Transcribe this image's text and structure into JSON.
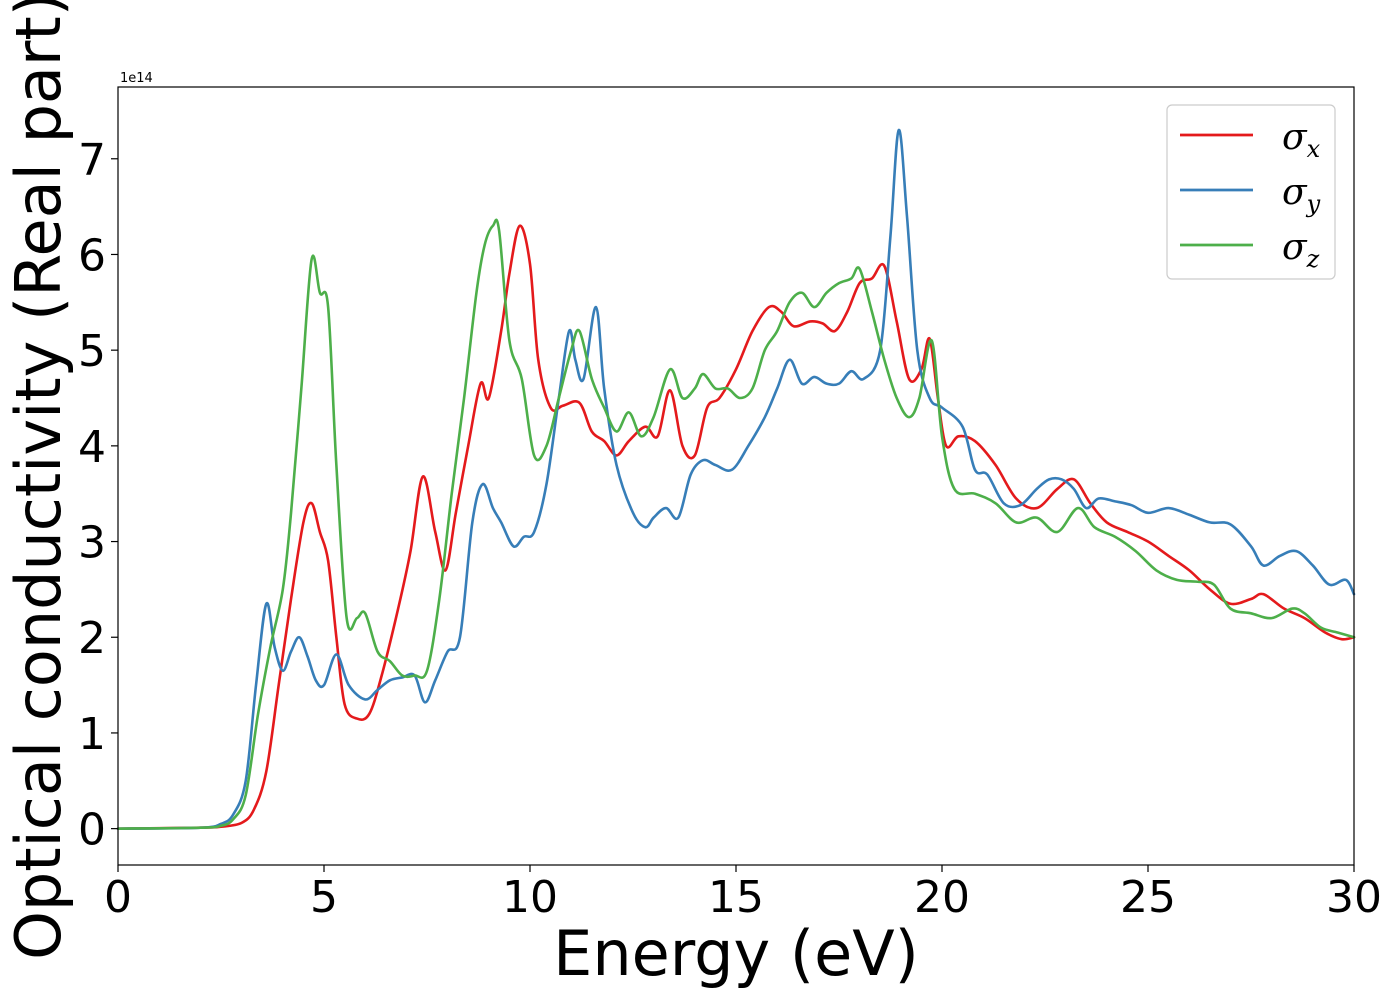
{
  "chart_data": {
    "type": "line",
    "xlabel": "Energy (eV)",
    "ylabel": "Optical conductivity (Real part)",
    "y_offset_text": "1e14",
    "xlim": [
      0,
      30
    ],
    "ylim": [
      -0.38,
      7.75
    ],
    "x_ticks": [
      0,
      5,
      10,
      15,
      20,
      25,
      30
    ],
    "x_tick_labels": [
      "0",
      "5",
      "10",
      "15",
      "20",
      "25",
      "30"
    ],
    "y_ticks": [
      0,
      1,
      2,
      3,
      4,
      5,
      6,
      7
    ],
    "y_tick_labels": [
      "0",
      "1",
      "2",
      "3",
      "4",
      "5",
      "6",
      "7"
    ],
    "grid": false,
    "legend_position": "top-right",
    "series": [
      {
        "name": "σ",
        "legend_symbol": "σ",
        "legend_subscript": "x",
        "color": "#e41a1c",
        "x": [
          0,
          2,
          2.5,
          3,
          3.3,
          3.6,
          3.9,
          4.2,
          4.5,
          4.7,
          4.9,
          5.1,
          5.3,
          5.5,
          5.8,
          6.1,
          6.4,
          6.8,
          7.1,
          7.4,
          7.7,
          7.95,
          8.2,
          8.5,
          8.8,
          9.0,
          9.3,
          9.5,
          9.75,
          10.0,
          10.2,
          10.5,
          10.8,
          11.2,
          11.5,
          11.8,
          12.1,
          12.4,
          12.8,
          13.1,
          13.4,
          13.7,
          14.0,
          14.3,
          14.6,
          15.0,
          15.4,
          15.8,
          16.1,
          16.4,
          16.8,
          17.1,
          17.4,
          17.7,
          18.0,
          18.3,
          18.6,
          18.9,
          19.2,
          19.5,
          19.7,
          19.9,
          20.1,
          20.4,
          20.8,
          21.3,
          21.8,
          22.3,
          22.8,
          23.2,
          23.6,
          24.0,
          24.5,
          25.0,
          25.5,
          26.0,
          26.5,
          27.0,
          27.5,
          27.8,
          28.3,
          28.8,
          29.3,
          29.7,
          30
        ],
        "y": [
          0,
          0.01,
          0.02,
          0.06,
          0.2,
          0.6,
          1.5,
          2.4,
          3.2,
          3.4,
          3.1,
          2.8,
          2.0,
          1.3,
          1.15,
          1.2,
          1.6,
          2.3,
          2.9,
          3.68,
          3.1,
          2.7,
          3.3,
          4.0,
          4.65,
          4.5,
          5.2,
          5.8,
          6.3,
          5.9,
          4.9,
          4.4,
          4.42,
          4.45,
          4.15,
          4.05,
          3.9,
          4.05,
          4.2,
          4.1,
          4.58,
          4.0,
          3.9,
          4.4,
          4.5,
          4.8,
          5.2,
          5.45,
          5.4,
          5.25,
          5.3,
          5.28,
          5.2,
          5.4,
          5.7,
          5.75,
          5.88,
          5.3,
          4.7,
          4.8,
          5.12,
          4.5,
          4.0,
          4.1,
          4.05,
          3.8,
          3.45,
          3.35,
          3.55,
          3.65,
          3.4,
          3.2,
          3.1,
          3.0,
          2.85,
          2.7,
          2.5,
          2.35,
          2.4,
          2.45,
          2.3,
          2.2,
          2.05,
          1.98,
          2.0
        ]
      },
      {
        "name": "σ",
        "legend_symbol": "σ",
        "legend_subscript": "y",
        "color": "#377eb8",
        "x": [
          0,
          2,
          2.5,
          2.8,
          3.1,
          3.35,
          3.6,
          3.8,
          4.0,
          4.2,
          4.4,
          4.6,
          4.8,
          5.0,
          5.3,
          5.6,
          6.0,
          6.3,
          6.6,
          6.9,
          7.2,
          7.45,
          7.7,
          8.0,
          8.3,
          8.6,
          8.85,
          9.1,
          9.3,
          9.6,
          9.85,
          10.1,
          10.4,
          10.7,
          10.95,
          11.1,
          11.3,
          11.6,
          11.8,
          12.1,
          12.5,
          12.8,
          13.0,
          13.3,
          13.6,
          13.9,
          14.2,
          14.5,
          14.9,
          15.3,
          15.7,
          16.0,
          16.3,
          16.6,
          16.9,
          17.2,
          17.5,
          17.8,
          18.1,
          18.5,
          18.75,
          18.95,
          19.15,
          19.4,
          19.7,
          20.0,
          20.5,
          20.8,
          21.1,
          21.5,
          21.9,
          22.3,
          22.6,
          22.9,
          23.2,
          23.5,
          23.8,
          24.2,
          24.6,
          25.0,
          25.5,
          26.0,
          26.5,
          27.0,
          27.5,
          27.8,
          28.2,
          28.6,
          29.0,
          29.4,
          29.8,
          30
        ],
        "y": [
          0,
          0.01,
          0.05,
          0.15,
          0.5,
          1.5,
          2.35,
          1.9,
          1.65,
          1.85,
          2.0,
          1.8,
          1.55,
          1.5,
          1.82,
          1.5,
          1.35,
          1.45,
          1.55,
          1.58,
          1.6,
          1.32,
          1.55,
          1.85,
          2.0,
          3.2,
          3.6,
          3.35,
          3.2,
          2.95,
          3.05,
          3.1,
          3.6,
          4.5,
          5.2,
          4.9,
          4.7,
          5.45,
          4.6,
          3.8,
          3.3,
          3.15,
          3.25,
          3.35,
          3.25,
          3.7,
          3.85,
          3.8,
          3.75,
          4.0,
          4.3,
          4.6,
          4.9,
          4.65,
          4.72,
          4.65,
          4.65,
          4.78,
          4.7,
          5.0,
          6.2,
          7.3,
          6.4,
          5.0,
          4.5,
          4.4,
          4.2,
          3.75,
          3.7,
          3.4,
          3.38,
          3.55,
          3.65,
          3.65,
          3.55,
          3.35,
          3.45,
          3.42,
          3.38,
          3.3,
          3.35,
          3.28,
          3.2,
          3.18,
          2.95,
          2.75,
          2.85,
          2.9,
          2.75,
          2.55,
          2.6,
          2.45
        ]
      },
      {
        "name": "σ",
        "legend_symbol": "σ",
        "legend_subscript": "z",
        "color": "#4daf4a",
        "x": [
          0,
          2,
          2.5,
          2.8,
          3.1,
          3.4,
          3.7,
          4.0,
          4.2,
          4.45,
          4.7,
          4.9,
          5.1,
          5.3,
          5.55,
          5.8,
          6.0,
          6.3,
          6.6,
          6.9,
          7.2,
          7.5,
          7.8,
          8.1,
          8.4,
          8.7,
          8.9,
          9.1,
          9.25,
          9.5,
          9.8,
          10.1,
          10.4,
          10.7,
          11.0,
          11.2,
          11.5,
          11.8,
          12.1,
          12.4,
          12.7,
          13.0,
          13.4,
          13.7,
          14.0,
          14.2,
          14.5,
          14.8,
          15.1,
          15.4,
          15.7,
          16.0,
          16.3,
          16.6,
          16.9,
          17.2,
          17.5,
          17.8,
          18.0,
          18.3,
          18.6,
          18.9,
          19.2,
          19.45,
          19.75,
          20.0,
          20.3,
          20.8,
          21.3,
          21.8,
          22.3,
          22.8,
          23.3,
          23.7,
          24.2,
          24.7,
          25.2,
          25.7,
          26.2,
          26.6,
          27.0,
          27.5,
          28.0,
          28.5,
          28.8,
          29.2,
          29.6,
          30
        ],
        "y": [
          0,
          0.01,
          0.03,
          0.1,
          0.35,
          1.2,
          1.9,
          2.5,
          3.3,
          4.6,
          5.95,
          5.6,
          5.45,
          3.8,
          2.2,
          2.2,
          2.25,
          1.85,
          1.75,
          1.6,
          1.6,
          1.65,
          2.4,
          3.5,
          4.5,
          5.6,
          6.1,
          6.3,
          6.25,
          5.1,
          4.7,
          3.9,
          4.0,
          4.5,
          5.0,
          5.2,
          4.7,
          4.4,
          4.15,
          4.35,
          4.1,
          4.3,
          4.8,
          4.5,
          4.6,
          4.75,
          4.6,
          4.6,
          4.5,
          4.6,
          5.0,
          5.2,
          5.5,
          5.6,
          5.45,
          5.6,
          5.7,
          5.75,
          5.85,
          5.4,
          4.9,
          4.5,
          4.3,
          4.5,
          5.1,
          4.1,
          3.55,
          3.5,
          3.4,
          3.2,
          3.25,
          3.1,
          3.35,
          3.15,
          3.05,
          2.9,
          2.7,
          2.6,
          2.58,
          2.55,
          2.3,
          2.25,
          2.2,
          2.3,
          2.25,
          2.1,
          2.05,
          2.0
        ]
      }
    ]
  }
}
